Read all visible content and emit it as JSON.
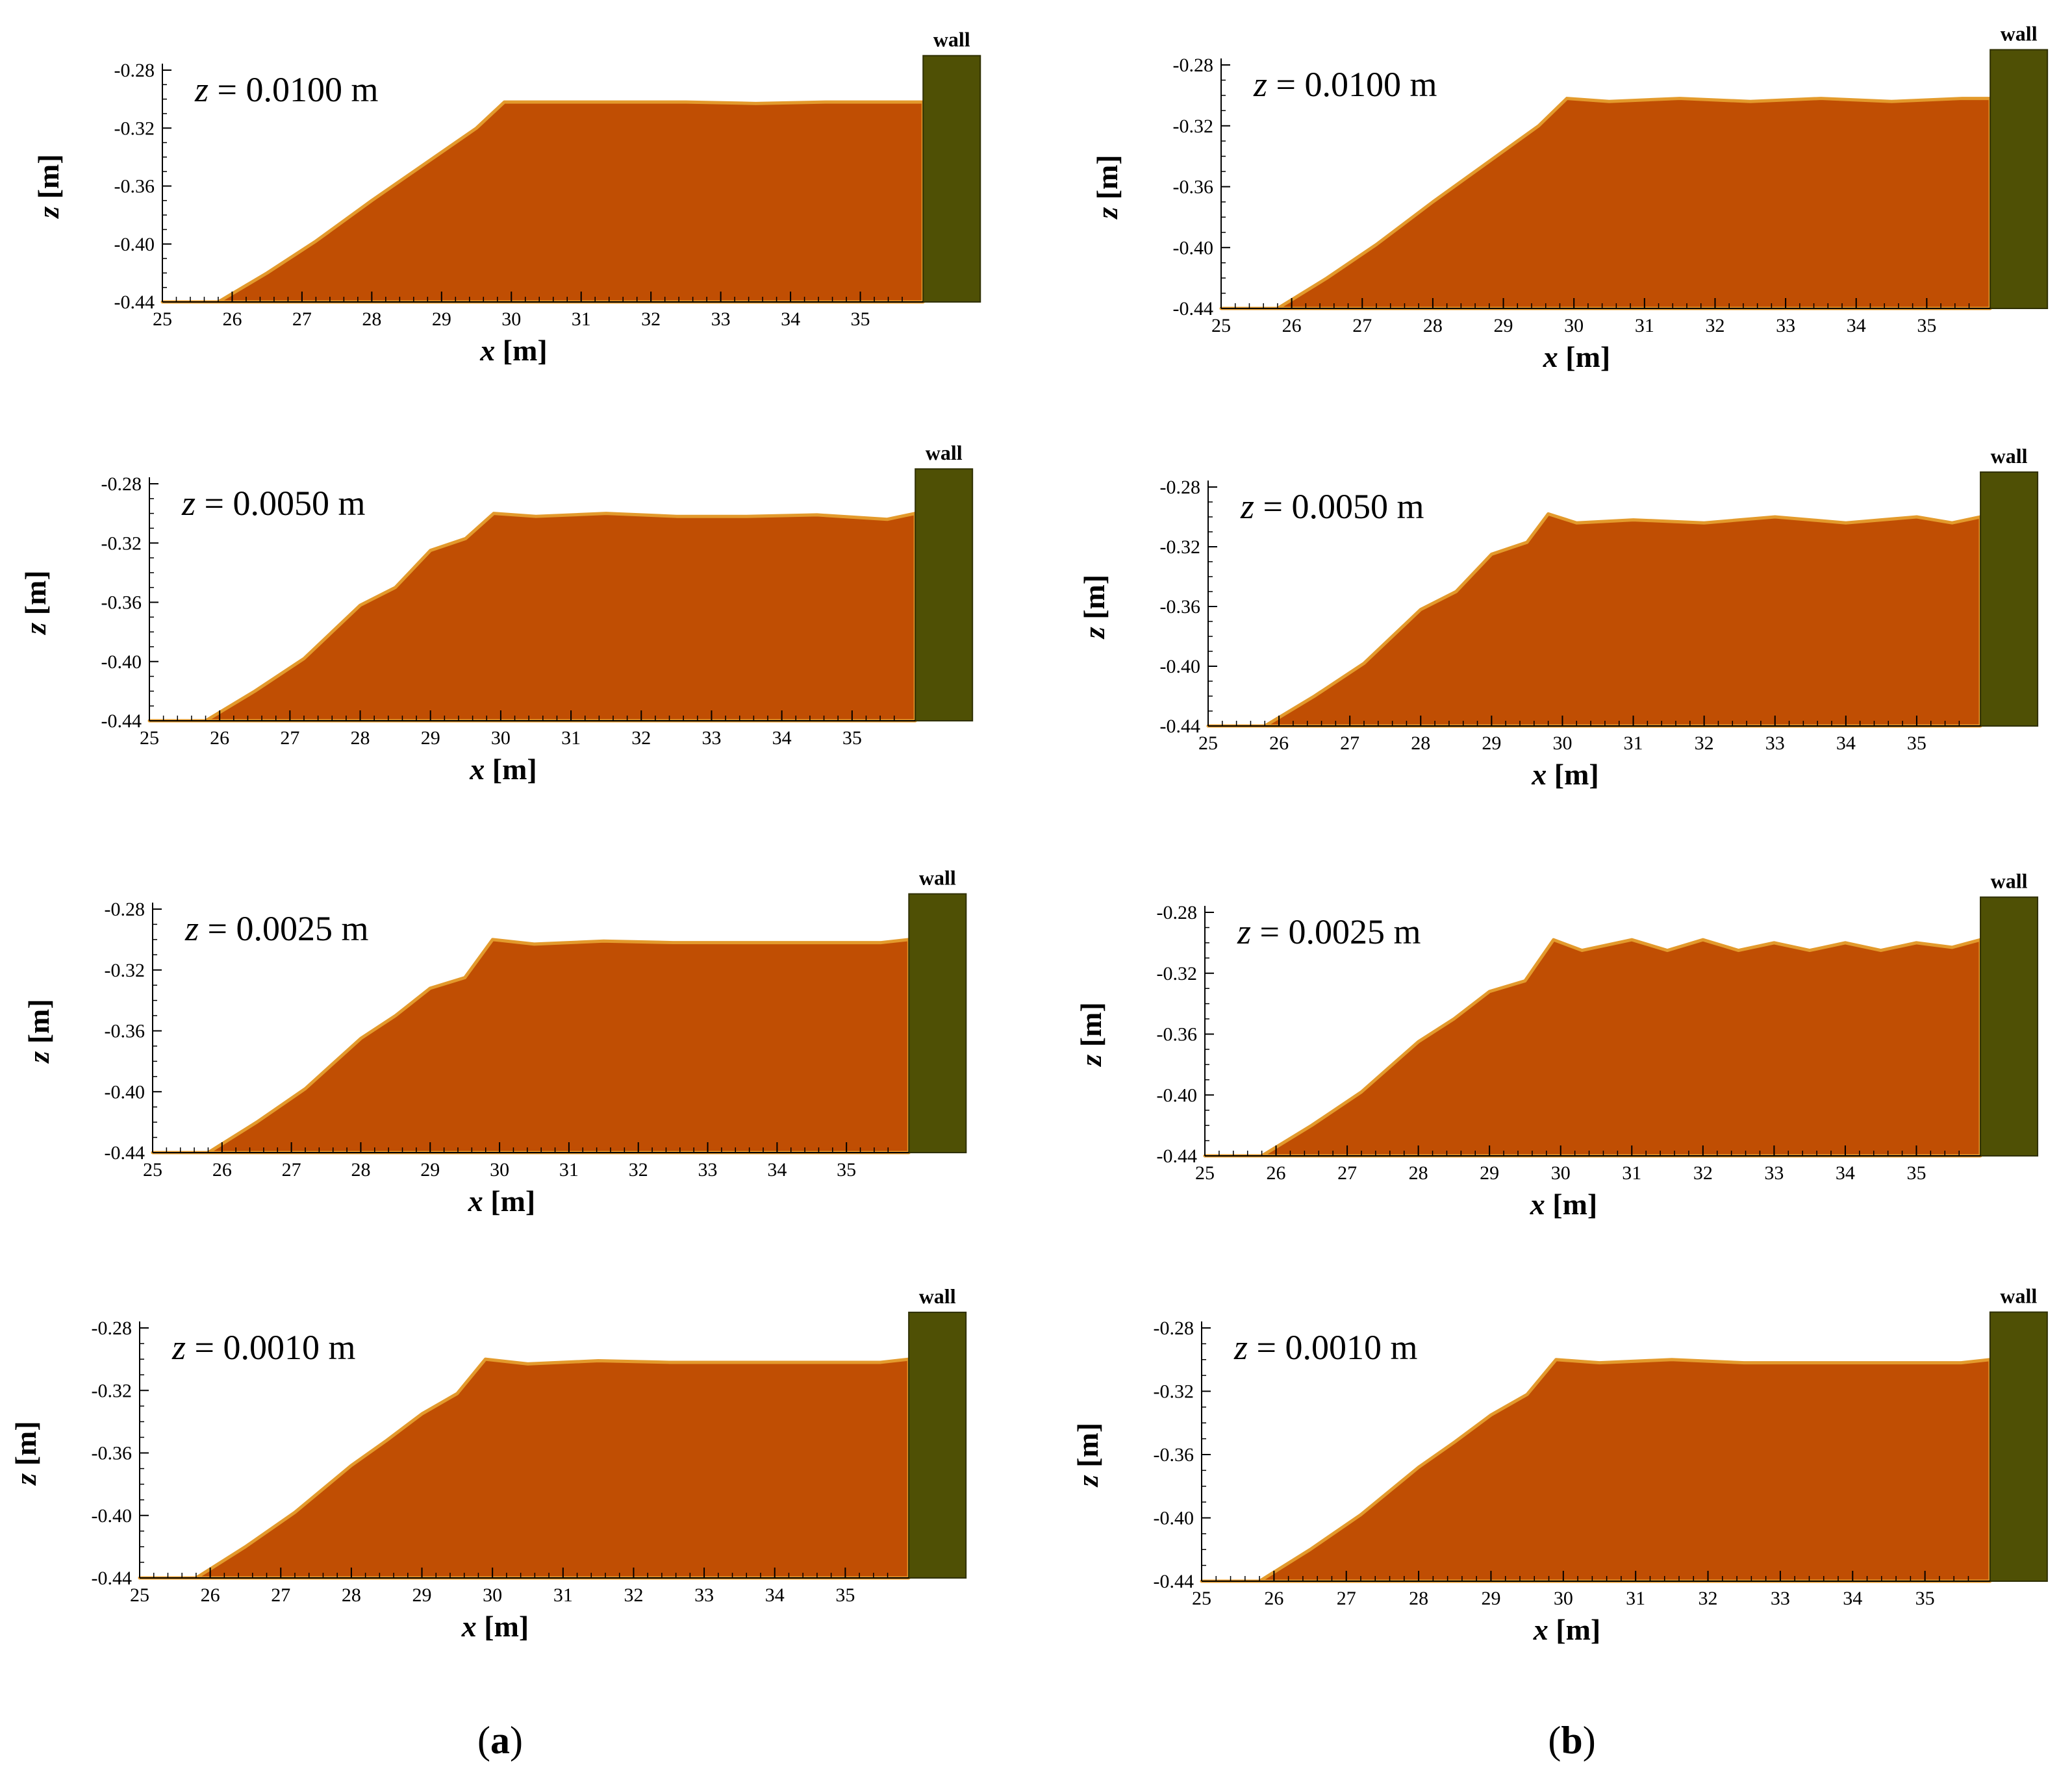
{
  "colors": {
    "sediment": "#c04e03",
    "sediment_edge": "#e39a2c",
    "wall": "#4f5005",
    "axis": "#000000"
  },
  "columns": [
    {
      "paren_open": "(",
      "letter": "a",
      "paren_close": ")"
    },
    {
      "paren_open": "(",
      "letter": "b",
      "paren_close": ")"
    }
  ],
  "chart_data": [
    {
      "type": "area",
      "column": "a",
      "annotation_var": "z",
      "annotation_value": "= 0.0100 m",
      "wall_label": "wall",
      "xlabel_var": "x",
      "xlabel_unit": "[m]",
      "ylabel_var": "z",
      "ylabel_unit": "[m]",
      "xlim": [
        25,
        36.0
      ],
      "ylim": [
        -0.44,
        -0.28
      ],
      "xticks": [
        "25",
        "26",
        "27",
        "28",
        "29",
        "30",
        "31",
        "32",
        "33",
        "34",
        "35"
      ],
      "yticks": [
        "-0.28",
        "-0.32",
        "-0.36",
        "-0.40",
        "-0.44"
      ],
      "profile_x": [
        25,
        25.8,
        26.5,
        27.2,
        28.0,
        28.6,
        29.2,
        29.5,
        29.9,
        30.5,
        31.5,
        32.5,
        33.5,
        34.5,
        35.5,
        35.9
      ],
      "profile_z": [
        -0.44,
        -0.44,
        -0.42,
        -0.398,
        -0.37,
        -0.35,
        -0.33,
        -0.32,
        -0.302,
        -0.302,
        -0.302,
        -0.302,
        -0.303,
        -0.302,
        -0.302,
        -0.302
      ],
      "wall_x_start": 35.9,
      "wall_top": -0.27
    },
    {
      "type": "area",
      "column": "b",
      "annotation_var": "z",
      "annotation_value": "= 0.0100 m",
      "wall_label": "wall",
      "xlabel_var": "x",
      "xlabel_unit": "[m]",
      "ylabel_var": "z",
      "ylabel_unit": "[m]",
      "xlim": [
        25,
        36.0
      ],
      "ylim": [
        -0.44,
        -0.28
      ],
      "xticks": [
        "25",
        "26",
        "27",
        "28",
        "29",
        "30",
        "31",
        "32",
        "33",
        "34",
        "35"
      ],
      "yticks": [
        "-0.28",
        "-0.32",
        "-0.36",
        "-0.40",
        "-0.44"
      ],
      "profile_x": [
        25,
        25.8,
        26.5,
        27.2,
        28.0,
        28.6,
        29.2,
        29.5,
        29.9,
        30.5,
        31.5,
        32.5,
        33.5,
        34.5,
        35.5,
        35.9
      ],
      "profile_z": [
        -0.44,
        -0.44,
        -0.42,
        -0.398,
        -0.37,
        -0.35,
        -0.33,
        -0.32,
        -0.302,
        -0.304,
        -0.302,
        -0.304,
        -0.302,
        -0.304,
        -0.302,
        -0.302
      ],
      "wall_x_start": 35.9,
      "wall_top": -0.27
    },
    {
      "type": "area",
      "column": "a",
      "annotation_var": "z",
      "annotation_value": "= 0.0050 m",
      "wall_label": "wall",
      "xlabel_var": "x",
      "xlabel_unit": "[m]",
      "ylabel_var": "z",
      "ylabel_unit": "[m]",
      "xlim": [
        25,
        36.0
      ],
      "ylim": [
        -0.44,
        -0.28
      ],
      "xticks": [
        "25",
        "26",
        "27",
        "28",
        "29",
        "30",
        "31",
        "32",
        "33",
        "34",
        "35"
      ],
      "yticks": [
        "-0.28",
        "-0.32",
        "-0.36",
        "-0.40",
        "-0.44"
      ],
      "profile_x": [
        25,
        25.8,
        26.5,
        27.2,
        28.0,
        28.5,
        29.0,
        29.5,
        29.9,
        30.5,
        31.5,
        32.5,
        33.5,
        34.5,
        35.5,
        35.9
      ],
      "profile_z": [
        -0.44,
        -0.44,
        -0.42,
        -0.398,
        -0.362,
        -0.35,
        -0.325,
        -0.317,
        -0.3,
        -0.302,
        -0.3,
        -0.302,
        -0.302,
        -0.301,
        -0.304,
        -0.3
      ],
      "wall_x_start": 35.9,
      "wall_top": -0.27
    },
    {
      "type": "area",
      "column": "b",
      "annotation_var": "z",
      "annotation_value": "= 0.0050 m",
      "wall_label": "wall",
      "xlabel_var": "x",
      "xlabel_unit": "[m]",
      "ylabel_var": "z",
      "ylabel_unit": "[m]",
      "xlim": [
        25,
        36.0
      ],
      "ylim": [
        -0.44,
        -0.28
      ],
      "xticks": [
        "25",
        "26",
        "27",
        "28",
        "29",
        "30",
        "31",
        "32",
        "33",
        "34",
        "35"
      ],
      "yticks": [
        "-0.28",
        "-0.32",
        "-0.36",
        "-0.40",
        "-0.44"
      ],
      "profile_x": [
        25,
        25.8,
        26.5,
        27.2,
        28.0,
        28.5,
        29.0,
        29.5,
        29.8,
        30.2,
        31.0,
        32.0,
        33.0,
        34.0,
        35.0,
        35.5,
        35.9
      ],
      "profile_z": [
        -0.44,
        -0.44,
        -0.42,
        -0.398,
        -0.362,
        -0.35,
        -0.325,
        -0.317,
        -0.298,
        -0.304,
        -0.302,
        -0.304,
        -0.3,
        -0.304,
        -0.3,
        -0.304,
        -0.3
      ],
      "wall_x_start": 35.9,
      "wall_top": -0.27
    },
    {
      "type": "area",
      "column": "a",
      "annotation_var": "z",
      "annotation_value": "= 0.0025 m",
      "wall_label": "wall",
      "xlabel_var": "x",
      "xlabel_unit": "[m]",
      "ylabel_var": "z",
      "ylabel_unit": "[m]",
      "xlim": [
        25,
        36.0
      ],
      "ylim": [
        -0.44,
        -0.28
      ],
      "xticks": [
        "25",
        "26",
        "27",
        "28",
        "29",
        "30",
        "31",
        "32",
        "33",
        "34",
        "35"
      ],
      "yticks": [
        "-0.28",
        "-0.32",
        "-0.36",
        "-0.40",
        "-0.44"
      ],
      "profile_x": [
        25,
        25.8,
        26.5,
        27.2,
        28.0,
        28.5,
        29.0,
        29.5,
        29.9,
        30.5,
        31.5,
        32.5,
        33.5,
        34.5,
        35.5,
        35.9
      ],
      "profile_z": [
        -0.44,
        -0.44,
        -0.42,
        -0.398,
        -0.365,
        -0.35,
        -0.332,
        -0.325,
        -0.3,
        -0.303,
        -0.301,
        -0.302,
        -0.302,
        -0.302,
        -0.302,
        -0.3
      ],
      "wall_x_start": 35.9,
      "wall_top": -0.27
    },
    {
      "type": "area",
      "column": "b",
      "annotation_var": "z",
      "annotation_value": "= 0.0025 m",
      "wall_label": "wall",
      "xlabel_var": "x",
      "xlabel_unit": "[m]",
      "ylabel_var": "z",
      "ylabel_unit": "[m]",
      "xlim": [
        25,
        36.0
      ],
      "ylim": [
        -0.44,
        -0.28
      ],
      "xticks": [
        "25",
        "26",
        "27",
        "28",
        "29",
        "30",
        "31",
        "32",
        "33",
        "34",
        "35"
      ],
      "yticks": [
        "-0.28",
        "-0.32",
        "-0.36",
        "-0.40",
        "-0.44"
      ],
      "profile_x": [
        25,
        25.8,
        26.5,
        27.2,
        28.0,
        28.5,
        29.0,
        29.5,
        29.9,
        30.3,
        31.0,
        31.5,
        32.0,
        32.5,
        33.0,
        33.5,
        34.0,
        34.5,
        35.0,
        35.5,
        35.9
      ],
      "profile_z": [
        -0.44,
        -0.44,
        -0.42,
        -0.398,
        -0.365,
        -0.35,
        -0.332,
        -0.325,
        -0.298,
        -0.305,
        -0.298,
        -0.305,
        -0.298,
        -0.305,
        -0.3,
        -0.305,
        -0.3,
        -0.305,
        -0.3,
        -0.303,
        -0.298
      ],
      "wall_x_start": 35.9,
      "wall_top": -0.27
    },
    {
      "type": "area",
      "column": "a",
      "annotation_var": "z",
      "annotation_value": "= 0.0010 m",
      "wall_label": "wall",
      "xlabel_var": "x",
      "xlabel_unit": "[m]",
      "ylabel_var": "z",
      "ylabel_unit": "[m]",
      "xlim": [
        25,
        36.0
      ],
      "ylim": [
        -0.44,
        -0.28
      ],
      "xticks": [
        "25",
        "26",
        "27",
        "28",
        "29",
        "30",
        "31",
        "32",
        "33",
        "34",
        "35"
      ],
      "yticks": [
        "-0.28",
        "-0.32",
        "-0.36",
        "-0.40",
        "-0.44"
      ],
      "profile_x": [
        25,
        25.8,
        26.5,
        27.2,
        28.0,
        28.5,
        29.0,
        29.5,
        29.9,
        30.5,
        31.5,
        32.5,
        33.5,
        34.5,
        35.5,
        35.9
      ],
      "profile_z": [
        -0.44,
        -0.44,
        -0.42,
        -0.398,
        -0.368,
        -0.352,
        -0.335,
        -0.322,
        -0.3,
        -0.303,
        -0.301,
        -0.302,
        -0.302,
        -0.302,
        -0.302,
        -0.3
      ],
      "wall_x_start": 35.9,
      "wall_top": -0.27
    },
    {
      "type": "area",
      "column": "b",
      "annotation_var": "z",
      "annotation_value": "= 0.0010 m",
      "wall_label": "wall",
      "xlabel_var": "x",
      "xlabel_unit": "[m]",
      "ylabel_var": "z",
      "ylabel_unit": "[m]",
      "xlim": [
        25,
        36.0
      ],
      "ylim": [
        -0.44,
        -0.28
      ],
      "xticks": [
        "25",
        "26",
        "27",
        "28",
        "29",
        "30",
        "31",
        "32",
        "33",
        "34",
        "35"
      ],
      "yticks": [
        "-0.28",
        "-0.32",
        "-0.36",
        "-0.40",
        "-0.44"
      ],
      "profile_x": [
        25,
        25.8,
        26.5,
        27.2,
        28.0,
        28.5,
        29.0,
        29.5,
        29.9,
        30.5,
        31.5,
        32.5,
        33.5,
        34.5,
        35.5,
        35.9
      ],
      "profile_z": [
        -0.44,
        -0.44,
        -0.42,
        -0.398,
        -0.368,
        -0.352,
        -0.335,
        -0.322,
        -0.3,
        -0.302,
        -0.3,
        -0.302,
        -0.302,
        -0.302,
        -0.302,
        -0.3
      ],
      "wall_x_start": 35.9,
      "wall_top": -0.27
    }
  ]
}
